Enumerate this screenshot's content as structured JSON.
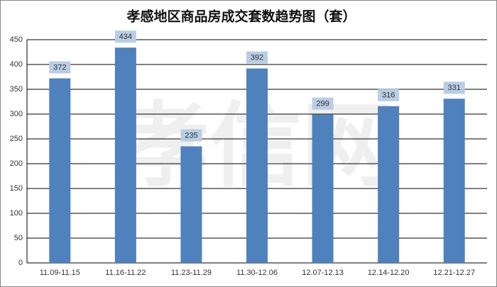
{
  "chart_data": {
    "type": "bar",
    "title": "孝感地区商品房成交套数趋势图（套）",
    "watermark": "孝信网",
    "categories": [
      "11.09-11.15",
      "11.16-11.22",
      "11.23-11.29",
      "11.30-12.06",
      "12.07-12.13",
      "12.14-12.20",
      "12.21-12.27"
    ],
    "values": [
      372,
      434,
      235,
      392,
      299,
      316,
      331
    ],
    "color": "#4f81bd",
    "label_box_color": "#b9cde5",
    "ylim": [
      0,
      450
    ],
    "yticks": [
      0,
      50,
      100,
      150,
      200,
      250,
      300,
      350,
      400,
      450
    ],
    "grid": true
  }
}
